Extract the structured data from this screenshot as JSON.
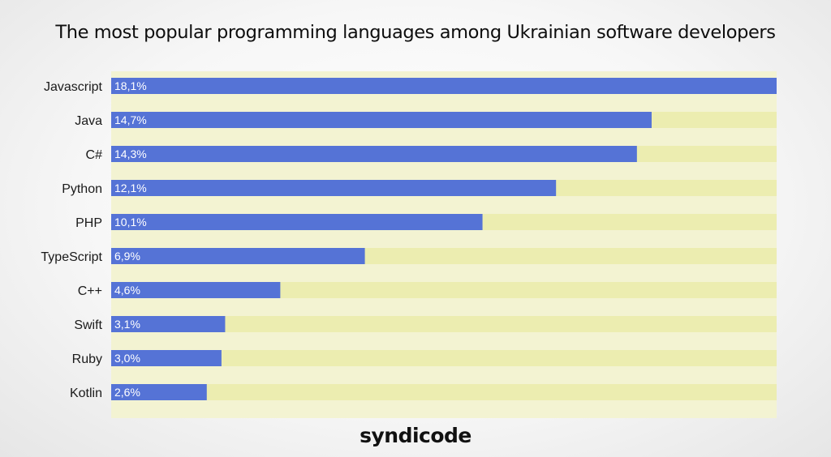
{
  "chart_data": {
    "type": "bar",
    "orientation": "horizontal",
    "title": "The most popular programming languages among Ukrainian software developers",
    "categories": [
      "Javascript",
      "Java",
      "C#",
      "Python",
      "PHP",
      "TypeScript",
      "C++",
      "Swift",
      "Ruby",
      "Kotlin"
    ],
    "values": [
      18.1,
      14.7,
      14.3,
      12.1,
      10.1,
      6.9,
      4.6,
      3.1,
      3.0,
      2.6
    ],
    "value_labels": [
      "18,1%",
      "14,7%",
      "14,3%",
      "12,1%",
      "10,1%",
      "6,9%",
      "4,6%",
      "3,1%",
      "3,0%",
      "2,6%"
    ],
    "xlim": [
      0,
      18.1
    ],
    "grid": false,
    "legend": "none",
    "colors": {
      "bar": "#5573d6",
      "track": "#ecedb0",
      "band": "#f3f3d2",
      "label": "#1a1a1a",
      "value_label": "#ffffff"
    }
  },
  "brand": "syndicode"
}
